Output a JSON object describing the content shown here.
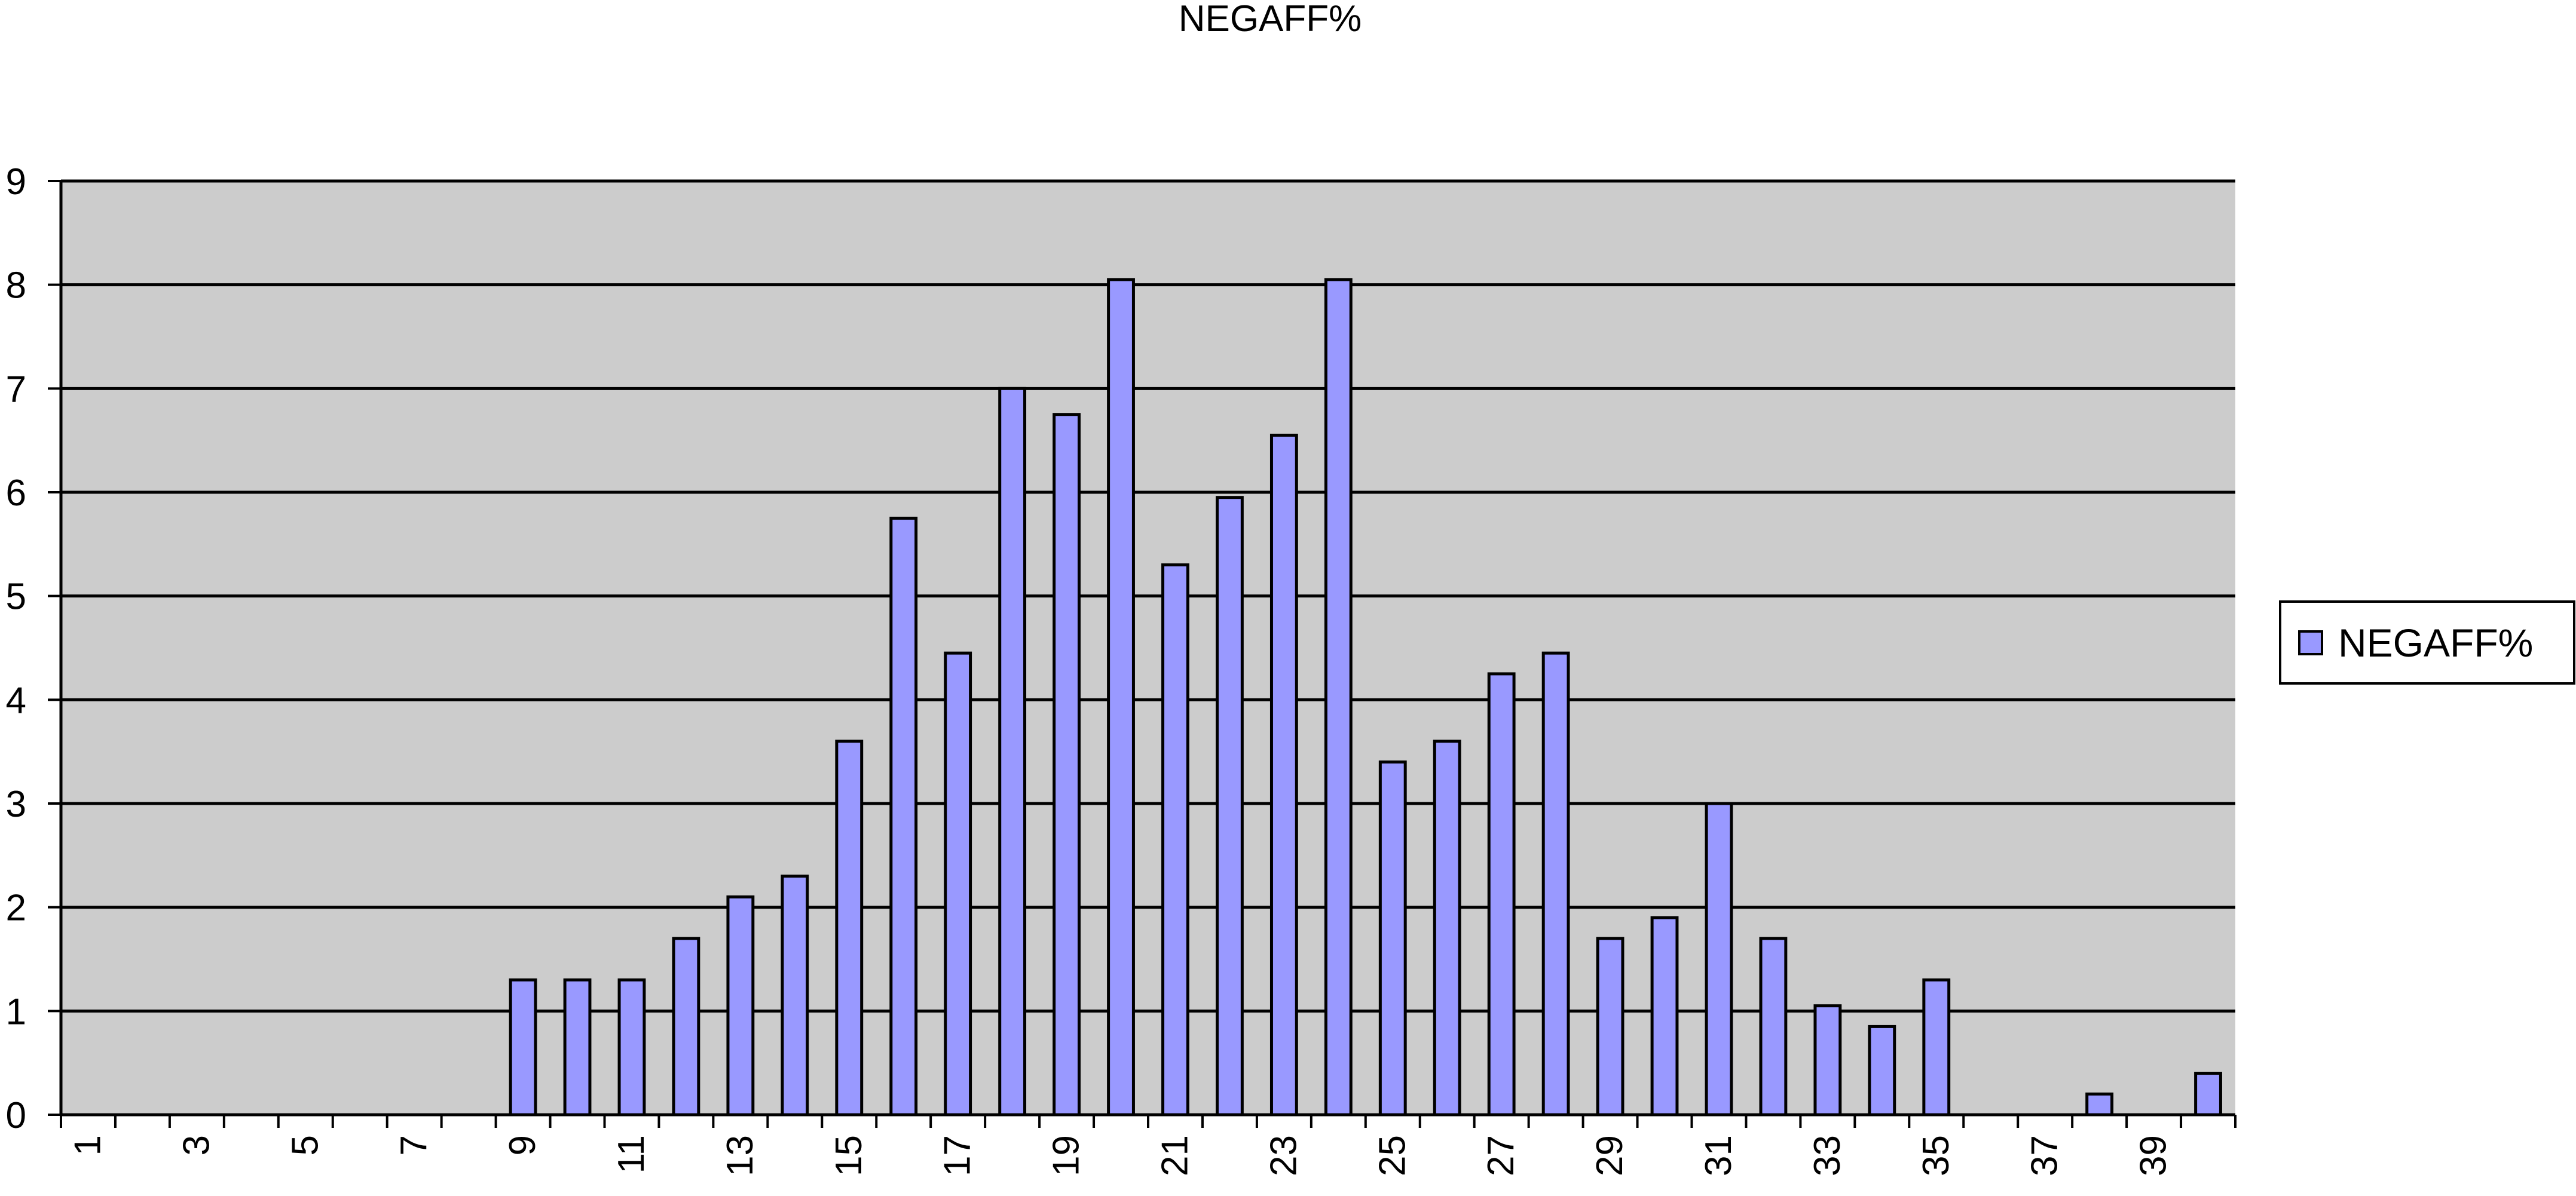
{
  "chart_data": {
    "type": "bar",
    "title": "NEGAFF%",
    "xlabel": "",
    "ylabel": "",
    "categories": [
      "1",
      "2",
      "3",
      "4",
      "5",
      "6",
      "7",
      "8",
      "9",
      "10",
      "11",
      "12",
      "13",
      "14",
      "15",
      "16",
      "17",
      "18",
      "19",
      "20",
      "21",
      "22",
      "23",
      "24",
      "25",
      "26",
      "27",
      "28",
      "29",
      "30",
      "31",
      "32",
      "33",
      "34",
      "35",
      "36",
      "37",
      "38",
      "39",
      "40"
    ],
    "x_tick_labels": [
      "1",
      "3",
      "5",
      "7",
      "9",
      "11",
      "13",
      "15",
      "17",
      "19",
      "21",
      "23",
      "25",
      "27",
      "29",
      "31",
      "33",
      "35",
      "37",
      "39"
    ],
    "series": [
      {
        "name": "NEGAFF%",
        "color": "#9999ff",
        "values": [
          0,
          0,
          0,
          0,
          0,
          0,
          0,
          0,
          1.3,
          1.3,
          1.3,
          1.7,
          2.1,
          2.3,
          3.6,
          5.75,
          4.45,
          7.0,
          6.75,
          8.05,
          5.3,
          5.95,
          6.55,
          8.05,
          3.4,
          3.6,
          4.25,
          4.45,
          1.7,
          1.9,
          3.0,
          1.7,
          1.05,
          0.85,
          1.3,
          0,
          0,
          0.2,
          0,
          0.4
        ]
      }
    ],
    "yticks": [
      0,
      1,
      2,
      3,
      4,
      5,
      6,
      7,
      8,
      9
    ],
    "ylim": [
      0,
      9
    ],
    "grid": true,
    "plot_background": "#cccccc",
    "bar_edge_color": "#000000",
    "legend_position": "right"
  }
}
